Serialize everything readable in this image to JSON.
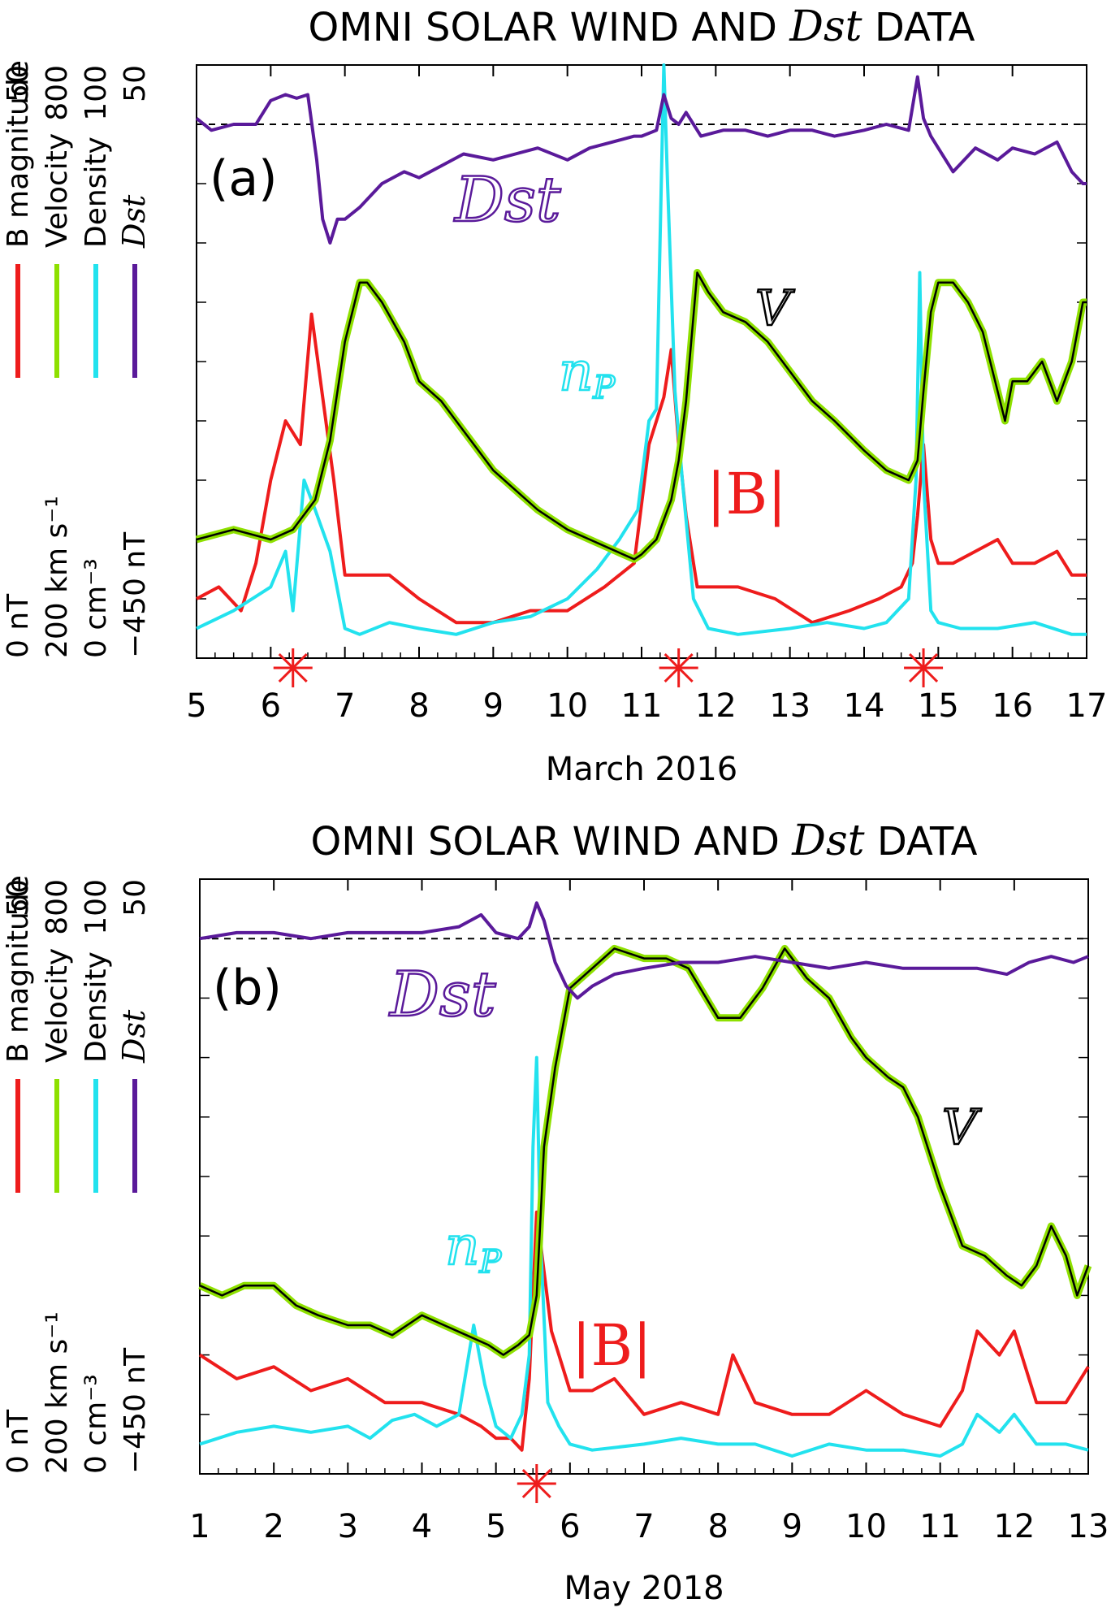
{
  "chart_data": [
    {
      "type": "line",
      "panel_label": "(a)",
      "title_parts": [
        "OMNI SOLAR WIND AND ",
        "Dst",
        " DATA"
      ],
      "xlabel": "March 2016",
      "x_ticks": [
        "5",
        "6",
        "7",
        "8",
        "9",
        "10",
        "11",
        "12",
        "13",
        "14",
        "15",
        "16",
        "17"
      ],
      "xlim": [
        5,
        17
      ],
      "axis_labels": {
        "b_magnitude": "B magnitude",
        "velocity": "Velocity",
        "density": "Density",
        "dst": "Dst"
      },
      "scales": {
        "b": {
          "min": "0 nT",
          "max": "50"
        },
        "v": {
          "min": "200 km s⁻¹",
          "max": "800"
        },
        "n": {
          "min": "0 cm⁻³",
          "max": "100"
        },
        "dst": {
          "min": "−450 nT",
          "max": "50"
        }
      },
      "annotations": {
        "dst": "Dst",
        "v": "V",
        "np": "n",
        "np_sub": "P",
        "b": "|B|"
      },
      "markers_x": [
        6.3,
        11.5,
        14.8
      ],
      "colors": {
        "b": "#ee1c1c",
        "v": "#000000",
        "v_halo": "#8ee000",
        "n": "#22e2ee",
        "dst": "#5a1a9a"
      },
      "series": [
        {
          "key": "dst",
          "units": "nT",
          "x": [
            5,
            5.2,
            5.5,
            5.8,
            6.0,
            6.2,
            6.35,
            6.5,
            6.62,
            6.7,
            6.8,
            6.9,
            7.0,
            7.2,
            7.5,
            7.8,
            8.0,
            8.3,
            8.6,
            9.0,
            9.3,
            9.6,
            10.0,
            10.3,
            10.6,
            10.9,
            11.0,
            11.2,
            11.3,
            11.4,
            11.5,
            11.6,
            11.8,
            12.1,
            12.4,
            12.7,
            13.0,
            13.3,
            13.6,
            14.0,
            14.3,
            14.6,
            14.72,
            14.8,
            14.9,
            15.0,
            15.2,
            15.5,
            15.8,
            16.0,
            16.3,
            16.6,
            16.8,
            16.95,
            17.0
          ],
          "y": [
            5,
            -5,
            0,
            0,
            20,
            25,
            22,
            25,
            -30,
            -80,
            -100,
            -80,
            -80,
            -70,
            -50,
            -40,
            -45,
            -35,
            -25,
            -30,
            -25,
            -20,
            -30,
            -20,
            -15,
            -10,
            -10,
            -5,
            25,
            5,
            0,
            10,
            -10,
            -5,
            -5,
            -10,
            -5,
            -5,
            -10,
            -5,
            0,
            -5,
            40,
            5,
            -10,
            -20,
            -40,
            -20,
            -30,
            -20,
            -25,
            -15,
            -40,
            -50,
            -50
          ]
        },
        {
          "key": "v",
          "units": "km/s",
          "x": [
            5,
            5.5,
            6.0,
            6.3,
            6.6,
            6.8,
            7.0,
            7.2,
            7.3,
            7.5,
            7.8,
            8.0,
            8.3,
            8.6,
            9.0,
            9.3,
            9.6,
            10.0,
            10.3,
            10.6,
            10.9,
            11.0,
            11.2,
            11.4,
            11.5,
            11.6,
            11.75,
            11.9,
            12.1,
            12.4,
            12.7,
            13.0,
            13.3,
            13.6,
            14.0,
            14.3,
            14.6,
            14.72,
            14.8,
            14.9,
            15.0,
            15.2,
            15.4,
            15.6,
            15.8,
            15.9,
            16.0,
            16.2,
            16.4,
            16.6,
            16.8,
            16.95,
            17.0
          ],
          "y": [
            320,
            330,
            320,
            330,
            360,
            420,
            520,
            580,
            580,
            560,
            520,
            480,
            460,
            430,
            390,
            370,
            350,
            330,
            320,
            310,
            300,
            305,
            320,
            360,
            400,
            460,
            590,
            570,
            550,
            540,
            520,
            490,
            460,
            440,
            410,
            390,
            380,
            400,
            470,
            550,
            580,
            580,
            560,
            530,
            470,
            440,
            480,
            480,
            500,
            460,
            500,
            560,
            560
          ]
        },
        {
          "key": "n",
          "units": "cm^-3",
          "x": [
            5,
            5.5,
            6.0,
            6.2,
            6.3,
            6.45,
            6.6,
            6.8,
            7.0,
            7.2,
            7.6,
            8.0,
            8.5,
            9.0,
            9.5,
            10.0,
            10.4,
            10.7,
            10.95,
            11.1,
            11.2,
            11.3,
            11.35,
            11.45,
            11.55,
            11.7,
            11.9,
            12.3,
            13.0,
            13.5,
            14.0,
            14.3,
            14.6,
            14.7,
            14.75,
            14.8,
            14.9,
            15.0,
            15.3,
            15.8,
            16.3,
            16.8,
            17.0
          ],
          "y": [
            5,
            8,
            12,
            18,
            8,
            30,
            25,
            18,
            5,
            4,
            6,
            5,
            4,
            6,
            7,
            10,
            15,
            20,
            25,
            40,
            42,
            100,
            80,
            45,
            30,
            10,
            5,
            4,
            5,
            6,
            5,
            6,
            10,
            30,
            65,
            30,
            8,
            6,
            5,
            5,
            6,
            4,
            4
          ]
        },
        {
          "key": "b",
          "units": "nT",
          "x": [
            5,
            5.3,
            5.6,
            5.8,
            6.0,
            6.2,
            6.4,
            6.55,
            6.7,
            6.85,
            7.0,
            7.2,
            7.6,
            8.0,
            8.5,
            9.0,
            9.5,
            10.0,
            10.5,
            10.9,
            11.1,
            11.2,
            11.3,
            11.4,
            11.5,
            11.6,
            11.75,
            11.9,
            12.3,
            12.8,
            13.3,
            13.8,
            14.2,
            14.5,
            14.65,
            14.72,
            14.8,
            14.9,
            15.0,
            15.2,
            15.5,
            15.8,
            16.0,
            16.3,
            16.6,
            16.8,
            17.0
          ],
          "y": [
            5,
            6,
            4,
            8,
            15,
            20,
            18,
            29,
            22,
            15,
            7,
            7,
            7,
            5,
            3,
            3,
            4,
            4,
            6,
            8,
            18,
            20,
            22,
            26,
            18,
            12,
            6,
            6,
            6,
            5,
            3,
            4,
            5,
            6,
            8,
            12,
            18,
            10,
            8,
            8,
            9,
            10,
            8,
            8,
            9,
            7,
            7
          ]
        }
      ]
    },
    {
      "type": "line",
      "panel_label": "(b)",
      "title_parts": [
        "OMNI SOLAR WIND AND ",
        "Dst",
        " DATA"
      ],
      "xlabel": "May 2018",
      "x_ticks": [
        "1",
        "2",
        "3",
        "4",
        "5",
        "6",
        "7",
        "8",
        "9",
        "10",
        "11",
        "12",
        "13"
      ],
      "xlim": [
        1,
        13
      ],
      "axis_labels": {
        "b_magnitude": "B magnitude",
        "velocity": "Velocity",
        "density": "Density",
        "dst": "Dst"
      },
      "scales": {
        "b": {
          "min": "0 nT",
          "max": "50"
        },
        "v": {
          "min": "200 km s⁻¹",
          "max": "800"
        },
        "n": {
          "min": "0 cm⁻³",
          "max": "100"
        },
        "dst": {
          "min": "−450 nT",
          "max": "50"
        }
      },
      "annotations": {
        "dst": "Dst",
        "v": "V",
        "np": "n",
        "np_sub": "P",
        "b": "|B|"
      },
      "markers_x": [
        5.55
      ],
      "colors": {
        "b": "#ee1c1c",
        "v": "#000000",
        "v_halo": "#8ee000",
        "n": "#22e2ee",
        "dst": "#5a1a9a"
      },
      "series": [
        {
          "key": "dst",
          "units": "nT",
          "x": [
            1,
            1.5,
            2.0,
            2.5,
            3.0,
            3.5,
            4.0,
            4.5,
            4.8,
            5.0,
            5.3,
            5.45,
            5.55,
            5.65,
            5.8,
            5.95,
            6.1,
            6.3,
            6.6,
            7.0,
            7.5,
            8.0,
            8.5,
            9.0,
            9.5,
            10.0,
            10.5,
            11.0,
            11.5,
            11.9,
            12.2,
            12.5,
            12.8,
            13.0
          ],
          "y": [
            0,
            5,
            5,
            0,
            5,
            5,
            5,
            10,
            20,
            5,
            0,
            10,
            30,
            15,
            -20,
            -40,
            -50,
            -40,
            -30,
            -25,
            -20,
            -20,
            -15,
            -20,
            -25,
            -20,
            -25,
            -25,
            -25,
            -30,
            -20,
            -15,
            -20,
            -15
          ]
        },
        {
          "key": "v",
          "units": "km/s",
          "x": [
            1,
            1.3,
            1.6,
            2.0,
            2.3,
            2.6,
            3.0,
            3.3,
            3.6,
            4.0,
            4.3,
            4.6,
            4.9,
            5.1,
            5.3,
            5.45,
            5.55,
            5.65,
            5.8,
            6.0,
            6.3,
            6.6,
            7.0,
            7.3,
            7.6,
            8.0,
            8.3,
            8.6,
            8.9,
            9.2,
            9.5,
            9.8,
            10.0,
            10.3,
            10.5,
            10.7,
            11.0,
            11.3,
            11.6,
            11.9,
            12.1,
            12.3,
            12.5,
            12.7,
            12.85,
            13.0
          ],
          "y": [
            390,
            380,
            390,
            390,
            370,
            360,
            350,
            350,
            340,
            360,
            350,
            340,
            330,
            320,
            330,
            340,
            380,
            530,
            610,
            690,
            710,
            730,
            720,
            720,
            710,
            660,
            660,
            690,
            730,
            700,
            680,
            640,
            620,
            600,
            590,
            560,
            490,
            430,
            420,
            400,
            390,
            410,
            450,
            420,
            380,
            410
          ]
        },
        {
          "key": "n",
          "units": "cm^-3",
          "x": [
            1,
            1.5,
            2.0,
            2.5,
            3.0,
            3.3,
            3.6,
            3.9,
            4.2,
            4.5,
            4.7,
            4.85,
            5.0,
            5.2,
            5.35,
            5.45,
            5.5,
            5.55,
            5.6,
            5.7,
            5.85,
            6.0,
            6.3,
            7.0,
            7.5,
            8.0,
            8.5,
            9.0,
            9.5,
            10.0,
            10.5,
            11.0,
            11.3,
            11.5,
            11.8,
            12.0,
            12.3,
            12.7,
            13.0
          ],
          "y": [
            5,
            7,
            8,
            7,
            8,
            6,
            9,
            10,
            8,
            10,
            25,
            15,
            8,
            6,
            10,
            20,
            55,
            70,
            40,
            12,
            8,
            5,
            4,
            5,
            6,
            5,
            5,
            3,
            5,
            4,
            4,
            3,
            5,
            10,
            7,
            10,
            5,
            5,
            4
          ]
        },
        {
          "key": "b",
          "units": "nT",
          "x": [
            1,
            1.5,
            2.0,
            2.5,
            3.0,
            3.5,
            4.0,
            4.5,
            4.8,
            5.0,
            5.2,
            5.35,
            5.45,
            5.55,
            5.65,
            5.75,
            5.85,
            6.0,
            6.3,
            6.6,
            7.0,
            7.5,
            8.0,
            8.2,
            8.5,
            9.0,
            9.5,
            10.0,
            10.5,
            11.0,
            11.3,
            11.5,
            11.8,
            12.0,
            12.3,
            12.7,
            13.0
          ],
          "y": [
            10,
            8,
            9,
            7,
            8,
            6,
            6,
            5,
            4,
            3,
            3,
            2,
            8,
            22,
            17,
            12,
            10,
            7,
            7,
            8,
            5,
            6,
            5,
            10,
            6,
            5,
            5,
            7,
            5,
            4,
            7,
            12,
            10,
            12,
            6,
            6,
            9
          ]
        }
      ]
    }
  ]
}
